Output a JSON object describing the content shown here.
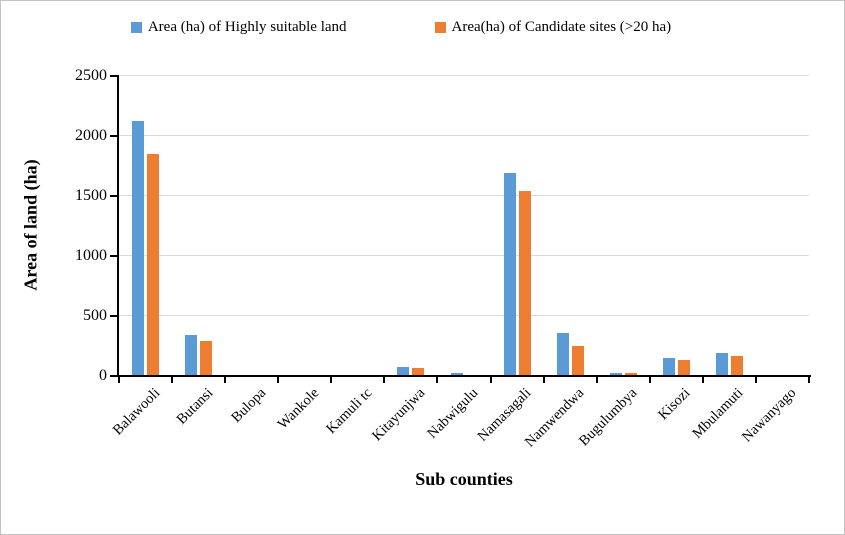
{
  "chart_data": {
    "type": "bar",
    "title": "",
    "xlabel": "Sub counties",
    "ylabel": "Area of land (ha)",
    "ylim": [
      0,
      2500
    ],
    "yticks": [
      0,
      500,
      1000,
      1500,
      2000,
      2500
    ],
    "grid": true,
    "legend_position": "top",
    "categories": [
      "Balawooli",
      "Butansi",
      "Bulopa",
      "Wankole",
      "Kamuli tc",
      "Kitayunjwa",
      "Nabwigulu",
      "Namasagali",
      "Namwendwa",
      "Bugulumbya",
      "Kisozi",
      "Mbulamuti",
      "Nawanyago"
    ],
    "series": [
      {
        "name": "Area (ha) of Highly suitable land",
        "color": "#5B9BD5",
        "values": [
          2120,
          330,
          0,
          0,
          0,
          65,
          20,
          1680,
          350,
          18,
          145,
          185,
          0
        ]
      },
      {
        "name": "Area(ha) of Candidate sites (>20 ha)",
        "color": "#ED7D31",
        "values": [
          1845,
          283,
          0,
          0,
          0,
          60,
          0,
          1535,
          245,
          15,
          125,
          160,
          0
        ]
      }
    ],
    "gridline_color": "#D9D9D9",
    "axis_color": "#000000"
  }
}
